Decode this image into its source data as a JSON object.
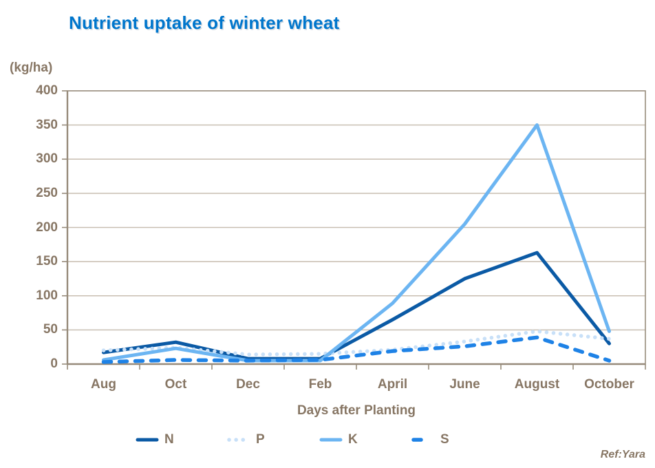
{
  "title": "Nutrient uptake of winter wheat",
  "y_axis_unit": "(kg/ha)",
  "x_axis_title": "Days after Planting",
  "ref": "Ref:Yara",
  "colors": {
    "title": "#0076CC",
    "axis_text": "#877664",
    "gridline": "#C8BEB1",
    "axis_line": "#968A7A",
    "N": "#0B5AA5",
    "P": "#C8E0F8",
    "K": "#6CB5F2",
    "S": "#1E82E6"
  },
  "chart_data": {
    "type": "line",
    "title": "Nutrient uptake of winter wheat",
    "xlabel": "Days after Planting",
    "ylabel": "(kg/ha)",
    "ylim": [
      0,
      400
    ],
    "yticks": [
      0,
      50,
      100,
      150,
      200,
      250,
      300,
      350,
      400
    ],
    "grid": true,
    "legend_position": "bottom",
    "categories": [
      "Aug",
      "Oct",
      "Dec",
      "Feb",
      "April",
      "June",
      "August",
      "October"
    ],
    "series": [
      {
        "name": "N",
        "style": "solid",
        "color_key": "N",
        "values": [
          17,
          32,
          8,
          8,
          65,
          125,
          163,
          30
        ]
      },
      {
        "name": "P",
        "style": "dotted",
        "color_key": "P",
        "values": [
          20,
          24,
          14,
          15,
          21,
          33,
          48,
          37
        ]
      },
      {
        "name": "K",
        "style": "solid",
        "color_key": "K",
        "values": [
          6,
          23,
          5,
          5,
          89,
          205,
          350,
          48
        ]
      },
      {
        "name": "S",
        "style": "dashed",
        "color_key": "S",
        "values": [
          3,
          6,
          5,
          6,
          19,
          26,
          39,
          5
        ]
      }
    ]
  }
}
